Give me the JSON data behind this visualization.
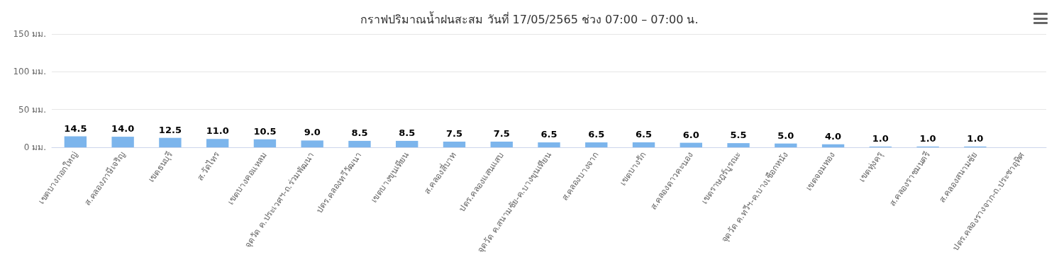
{
  "chart_data": {
    "type": "bar",
    "title": "กราฟปริมาณน้ำฝนสะสม วันที่ 17/05/2565 ช่วง 07:00 – 07:00 น.",
    "categories": [
      "เขตบางกอกใหญ่",
      "ส.คลองภาษีเจริญ",
      "เขตธนบุรี",
      "ส.วัดไทร",
      "เขตบางคอแหลม",
      "จุดวัด ค.ประเวศฯ-ถ.ร่วมพัฒนา",
      "ปตร.คลองทวีวัฒนา",
      "เขตบางขุนเทียน",
      "ส.คลองสี่บาท",
      "ปตร.คลองแสนแสบ",
      "จุดวัด ค.สนามชัย-ค.บางขุนเทียน",
      "ส.คลองบางจาก",
      "เขตบางรัก",
      "ส.คลองดาวคะนอง",
      "เขตราษฎร์บูรณะ",
      "จุดวัด ค.ทวีฯ-ค.บางเชือกหนัง",
      "เขตจอมทอง",
      "เขตทุ่งครุ",
      "ส.คลองราชมนตรี",
      "ส.คลองสนามชัย",
      "ปตร.คลองรางจาก-ถ.ประชาอุทิศ"
    ],
    "values": [
      14.5,
      14.0,
      12.5,
      11.0,
      10.5,
      9.0,
      8.5,
      8.5,
      7.5,
      7.5,
      6.5,
      6.5,
      6.5,
      6.0,
      5.5,
      5.0,
      4.0,
      1.0,
      1.0,
      1.0,
      null
    ],
    "value_labels": [
      "14.5",
      "14.0",
      "12.5",
      "11.0",
      "10.5",
      "9.0",
      "8.5",
      "8.5",
      "7.5",
      "7.5",
      "6.5",
      "6.5",
      "6.5",
      "6.0",
      "5.5",
      "5.0",
      "4.0",
      "1.0",
      "1.0",
      "1.0",
      null
    ],
    "color": "#7cb5ec",
    "ylim": [
      0,
      150
    ],
    "yticks": [
      {
        "value": 0,
        "label": "0 มม."
      },
      {
        "value": 50,
        "label": "50 มม."
      },
      {
        "value": 100,
        "label": "100 มม."
      },
      {
        "value": 150,
        "label": "150 มม."
      }
    ],
    "grid": "y"
  }
}
